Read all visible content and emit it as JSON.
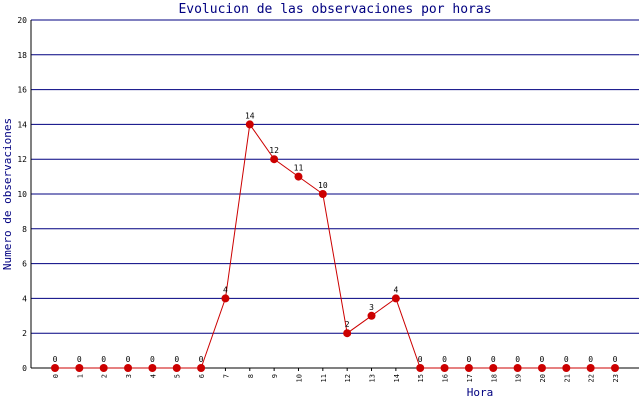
{
  "chart_data": {
    "type": "line",
    "title": "Evolucion de las observaciones por horas",
    "x_label": "Hora",
    "y_label": "Numero de observaciones",
    "categories": [
      "0",
      "1",
      "2",
      "3",
      "4",
      "5",
      "6",
      "7",
      "8",
      "9",
      "10",
      "11",
      "12",
      "13",
      "14",
      "15",
      "16",
      "17",
      "18",
      "19",
      "20",
      "21",
      "22",
      "23"
    ],
    "values": [
      0,
      0,
      0,
      0,
      0,
      0,
      0,
      4,
      14,
      12,
      11,
      10,
      2,
      3,
      4,
      0,
      0,
      0,
      0,
      0,
      0,
      0,
      0,
      0
    ],
    "color": "#cc0000",
    "ylim": [
      0,
      20
    ],
    "yticks": [
      0,
      2,
      4,
      6,
      8,
      10,
      12,
      14,
      16,
      18,
      20
    ],
    "grid": true
  }
}
